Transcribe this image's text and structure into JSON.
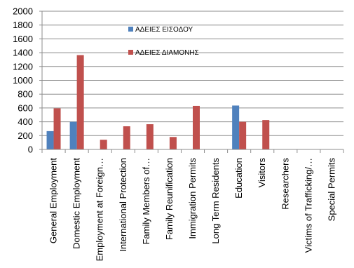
{
  "chart_data": {
    "type": "bar",
    "categories": [
      "General Employment",
      "Domestic Employment",
      "Employment at Foreign…",
      "International Protection",
      "Family Members of…",
      "Family Reunification",
      "Immigration Permits",
      "Long Term Residents",
      "Education",
      "Visitors",
      "Researchers",
      "Victims of Trafficking/…",
      "Special Permits"
    ],
    "series": [
      {
        "name": "ΑΔΕΙΕΣ ΕΙΣΟΔΟΥ",
        "color": "#4f81bd",
        "values": [
          265,
          400,
          0,
          0,
          0,
          0,
          0,
          0,
          635,
          0,
          0,
          0,
          0
        ]
      },
      {
        "name": "ΑΔΕΙΕΣ ΔΙΑΜΟΝΗΣ",
        "color": "#c0504d",
        "values": [
          595,
          1365,
          140,
          335,
          365,
          180,
          630,
          0,
          400,
          425,
          0,
          0,
          0
        ]
      }
    ],
    "ylim": [
      0,
      2000
    ],
    "y_ticks": [
      "0",
      "200",
      "400",
      "600",
      "800",
      "1000",
      "1200",
      "1400",
      "1600",
      "1800",
      "2000"
    ],
    "grid": true,
    "legend": "top-center",
    "title": "",
    "xlabel": "",
    "ylabel": ""
  }
}
